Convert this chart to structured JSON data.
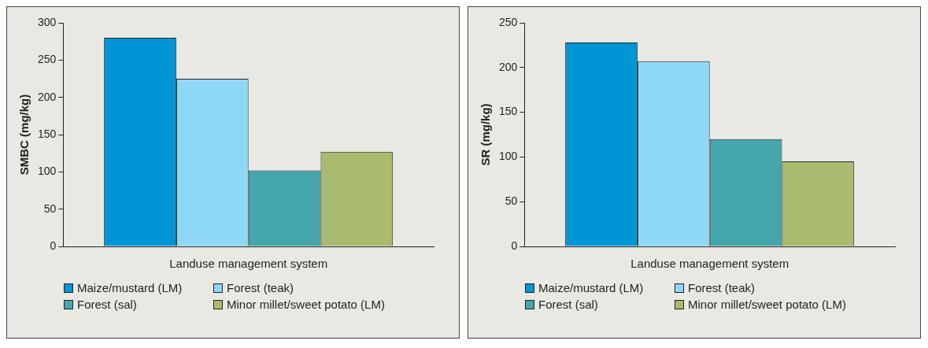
{
  "chart_data": [
    {
      "type": "bar",
      "xlabel": "Landuse management system",
      "ylabel": "SMBC (mg/kg)",
      "categories": [
        null
      ],
      "ylim": [
        0,
        300
      ],
      "yticks": [
        0,
        50,
        100,
        150,
        200,
        250,
        300
      ],
      "tick_labels": "y",
      "legend": "bottom",
      "grid": false,
      "series": [
        {
          "name": "Maize/mustard (LM)",
          "color": "#0096d6",
          "values": [
            280
          ]
        },
        {
          "name": "Forest (teak)",
          "color": "#8fd8f5",
          "values": [
            225
          ]
        },
        {
          "name": "Forest (sal)",
          "color": "#45a6ad",
          "values": [
            102
          ]
        },
        {
          "name": "Minor millet/sweet potato (LM)",
          "color": "#a9bb6e",
          "values": [
            127
          ]
        }
      ]
    },
    {
      "type": "bar",
      "xlabel": "Landuse management system",
      "ylabel": "SR (mg/kg)",
      "categories": [
        null
      ],
      "ylim": [
        0,
        250
      ],
      "yticks": [
        0,
        50,
        100,
        150,
        200,
        250
      ],
      "tick_labels": "y",
      "legend": "bottom",
      "grid": false,
      "series": [
        {
          "name": "Maize/mustard (LM)",
          "color": "#0096d6",
          "values": [
            228
          ]
        },
        {
          "name": "Forest (teak)",
          "color": "#8fd8f5",
          "values": [
            207
          ]
        },
        {
          "name": "Forest (sal)",
          "color": "#45a6ad",
          "values": [
            120
          ]
        },
        {
          "name": "Minor millet/sweet potato (LM)",
          "color": "#a9bb6e",
          "values": [
            95
          ]
        }
      ]
    }
  ]
}
